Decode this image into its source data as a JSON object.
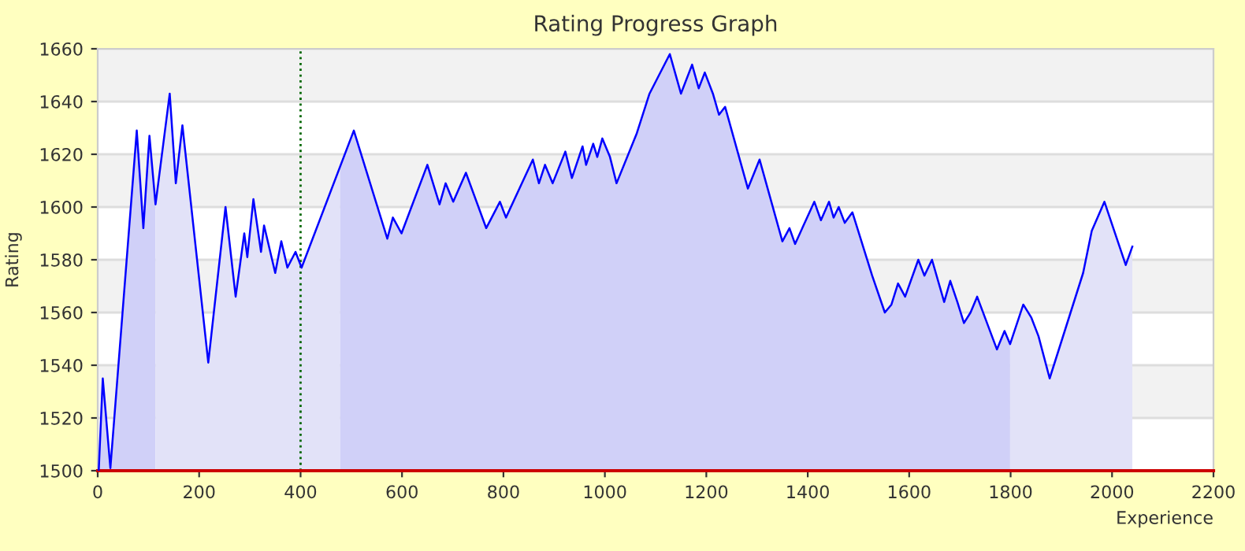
{
  "chart_data": {
    "type": "area",
    "title": "Rating Progress Graph",
    "xlabel": "Experience",
    "ylabel": "Rating",
    "xlim": [
      0,
      2200
    ],
    "xticks": [
      0,
      200,
      400,
      600,
      800,
      1000,
      1200,
      1400,
      1600,
      1800,
      2000,
      2200
    ],
    "ylim": [
      1500,
      1660
    ],
    "yticks": [
      1500,
      1520,
      1540,
      1560,
      1580,
      1600,
      1620,
      1640,
      1660
    ],
    "grid": "y",
    "marker": "none",
    "line_style": "solid",
    "ref_lines": [
      {
        "axis": "x",
        "value": 400,
        "color": "#006600",
        "line_style": "dotted"
      }
    ],
    "series": [
      {
        "color": "#d0d0f8",
        "x": [
          2,
          10,
          25,
          77,
          90,
          102,
          114
        ],
        "values": [
          1500,
          1535,
          1501,
          1629,
          1592,
          1627,
          1601
        ]
      },
      {
        "color": "#e2e2f8",
        "x": [
          114,
          142,
          154,
          167,
          218,
          252,
          272,
          289,
          295,
          307,
          322,
          328,
          350,
          362,
          374,
          390,
          402,
          478
        ],
        "values": [
          1601,
          1643,
          1609,
          1631,
          1541,
          1600,
          1566,
          1590,
          1581,
          1603,
          1583,
          1593,
          1575,
          1587,
          1577,
          1583,
          1577,
          1615
        ]
      },
      {
        "color": "#d0d0f8",
        "x": [
          478,
          505,
          571,
          582,
          599,
          650,
          674,
          686,
          701,
          726,
          766,
          793,
          805,
          858,
          870,
          882,
          897,
          922,
          935,
          956,
          963,
          977,
          985,
          995,
          1010,
          1023,
          1063,
          1088,
          1128,
          1150,
          1172,
          1185,
          1197,
          1213,
          1225,
          1237,
          1282,
          1305,
          1350,
          1364,
          1375,
          1413,
          1426,
          1442,
          1451,
          1461,
          1473,
          1488,
          1527,
          1552,
          1565,
          1578,
          1592,
          1618,
          1630,
          1645,
          1669,
          1681,
          1695,
          1708,
          1721,
          1734,
          1773,
          1788,
          1799
        ],
        "values": [
          1615,
          1629,
          1588,
          1596,
          1590,
          1616,
          1601,
          1609,
          1602,
          1613,
          1592,
          1602,
          1596,
          1618,
          1609,
          1616,
          1609,
          1621,
          1611,
          1623,
          1616,
          1624,
          1619,
          1626,
          1619,
          1609,
          1628,
          1643,
          1658,
          1643,
          1654,
          1645,
          1651,
          1643,
          1635,
          1638,
          1607,
          1618,
          1587,
          1592,
          1586,
          1602,
          1595,
          1602,
          1596,
          1600,
          1594,
          1598,
          1574,
          1560,
          1563,
          1571,
          1566,
          1580,
          1574,
          1580,
          1564,
          1572,
          1564,
          1556,
          1560,
          1566,
          1546,
          1553,
          1548
        ]
      },
      {
        "color": "#e2e2f8",
        "x": [
          1799,
          1825,
          1841,
          1855,
          1877,
          1943,
          1960,
          1985,
          2027,
          2040
        ],
        "values": [
          1548,
          1563,
          1558,
          1551,
          1535,
          1575,
          1591,
          1602,
          1578,
          1585
        ]
      },
      {
        "type": "line",
        "color": "#0000ff",
        "x": [
          2,
          10,
          25,
          77,
          90,
          102,
          114,
          142,
          154,
          167,
          218,
          252,
          272,
          289,
          295,
          307,
          322,
          328,
          350,
          362,
          374,
          390,
          402,
          505,
          571,
          582,
          599,
          650,
          674,
          686,
          701,
          726,
          766,
          793,
          805,
          858,
          870,
          882,
          897,
          922,
          935,
          956,
          963,
          977,
          985,
          995,
          1010,
          1023,
          1063,
          1088,
          1128,
          1150,
          1172,
          1185,
          1197,
          1213,
          1225,
          1237,
          1282,
          1305,
          1350,
          1364,
          1375,
          1413,
          1426,
          1442,
          1451,
          1461,
          1473,
          1488,
          1527,
          1552,
          1565,
          1578,
          1592,
          1618,
          1630,
          1645,
          1669,
          1681,
          1695,
          1708,
          1721,
          1734,
          1773,
          1788,
          1799,
          1825,
          1841,
          1855,
          1877,
          1943,
          1960,
          1985,
          2027,
          2040
        ],
        "values": [
          1500,
          1535,
          1501,
          1629,
          1592,
          1627,
          1601,
          1643,
          1609,
          1631,
          1541,
          1600,
          1566,
          1590,
          1581,
          1603,
          1583,
          1593,
          1575,
          1587,
          1577,
          1583,
          1577,
          1629,
          1588,
          1596,
          1590,
          1616,
          1601,
          1609,
          1602,
          1613,
          1592,
          1602,
          1596,
          1618,
          1609,
          1616,
          1609,
          1621,
          1611,
          1623,
          1616,
          1624,
          1619,
          1626,
          1619,
          1609,
          1628,
          1643,
          1658,
          1643,
          1654,
          1645,
          1651,
          1643,
          1635,
          1638,
          1607,
          1618,
          1587,
          1592,
          1586,
          1602,
          1595,
          1602,
          1596,
          1600,
          1594,
          1598,
          1574,
          1560,
          1563,
          1571,
          1566,
          1580,
          1574,
          1580,
          1564,
          1572,
          1564,
          1556,
          1560,
          1566,
          1546,
          1553,
          1548,
          1563,
          1558,
          1551,
          1535,
          1575,
          1591,
          1602,
          1578,
          1585
        ]
      }
    ]
  }
}
